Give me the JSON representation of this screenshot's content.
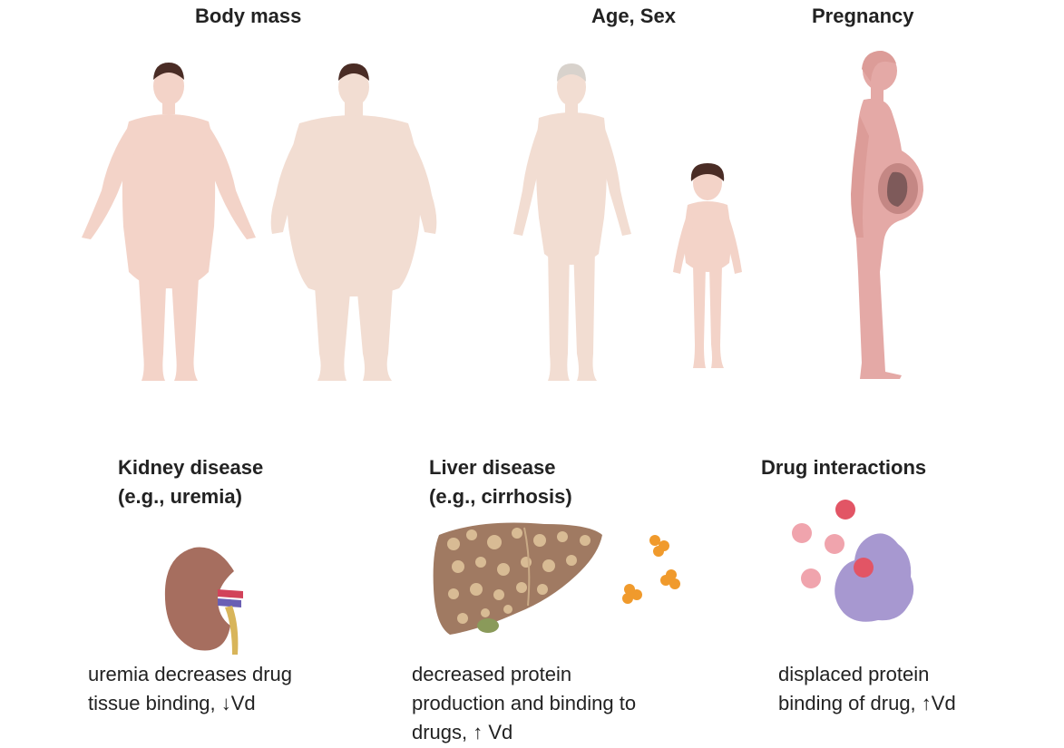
{
  "categories": {
    "body_mass": "Body mass",
    "age_sex": "Age, Sex",
    "pregnancy": "Pregnancy",
    "kidney": {
      "line1": "Kidney disease",
      "line2": "(e.g., uremia)"
    },
    "liver": {
      "line1": "Liver disease",
      "line2": "(e.g., cirrhosis)"
    },
    "drug": {
      "line1": "Drug interactions"
    }
  },
  "effects": {
    "kidney": {
      "line1": "uremia decreases drug",
      "line2": "tissue binding, ↓Vd"
    },
    "liver": {
      "line1": "decreased protein",
      "line2": "production and binding to",
      "line3": "drugs, ↑ Vd"
    },
    "drug": {
      "line1": "displaced protein",
      "line2": "binding of drug, ↑Vd"
    }
  },
  "colors": {
    "skin": "#f3d3c8",
    "skin_light": "#f2ddd2",
    "skin_pregnant": "#e4a9a6",
    "hair_dark": "#4a2c25",
    "hair_grey": "#d8d2cc",
    "kidney": "#a66e5f",
    "liver": "#a07a62",
    "nodule": "#d8bb94",
    "orange": "#f09a2c",
    "red": "#e25565",
    "pink": "#f0a4ad",
    "protein": "#a798d0"
  }
}
